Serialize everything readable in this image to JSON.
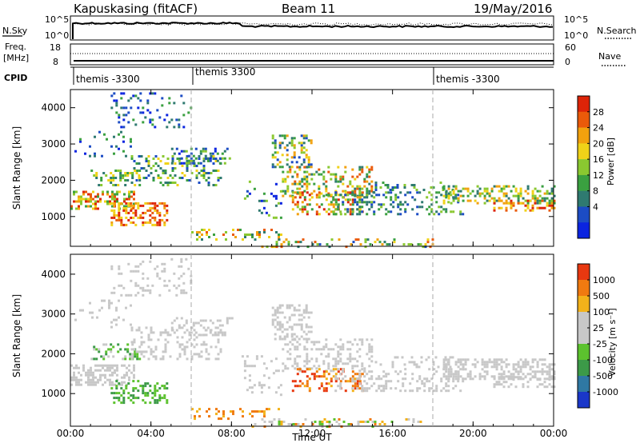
{
  "header": {
    "station": "Kapuskasing (fitACF)",
    "beam": "Beam 11",
    "date": "19/May/2016"
  },
  "noise_panel": {
    "left_label": "N.Sky",
    "right_label": "N.Search",
    "left_ticks": [
      "10^5",
      "10^0"
    ],
    "right_ticks": [
      "10^5",
      "10^0"
    ]
  },
  "freq_panel": {
    "left_label_1": "Freq.",
    "left_label_2": "[MHz]",
    "right_label": "Nave",
    "left_ticks": [
      "18",
      "8"
    ],
    "right_ticks": [
      "60",
      "0"
    ]
  },
  "cpid": {
    "label": "CPID",
    "segments": [
      {
        "start_hour": 0,
        "name": "themis -3300"
      },
      {
        "start_hour": 6,
        "name": "themis 3300"
      },
      {
        "start_hour": 18,
        "name": "themis -3300"
      }
    ]
  },
  "chart_data": [
    {
      "type": "heatmap",
      "quantity": "power",
      "ylabel": "Slant Range [km]",
      "ylim": [
        180,
        4500
      ],
      "yticks": [
        "1000",
        "2000",
        "3000",
        "4000"
      ],
      "colorbar_label": "Power [dB]",
      "colorbar_ticks": [
        "28",
        "24",
        "20",
        "16",
        "12",
        "8",
        "4"
      ],
      "colors": [
        "#0b24e0",
        "#1c4cc4",
        "#2f7a70",
        "#3aa040",
        "#8ac830",
        "#f0d218",
        "#f2a10e",
        "#ea5a0a",
        "#dd2408"
      ]
    },
    {
      "type": "heatmap",
      "quantity": "velocity",
      "ylabel": "Slant Range [km]",
      "ylim": [
        180,
        4500
      ],
      "yticks": [
        "1000",
        "2000",
        "3000",
        "4000"
      ],
      "colorbar_label": "Velocity [m s⁻¹]",
      "colorbar_ticks": [
        "1000",
        "500",
        "100",
        "25",
        "-25",
        "-100",
        "-500",
        "-1000"
      ],
      "colors": [
        "#1a37c9",
        "#2f78a3",
        "#3c9a48",
        "#5cc22e",
        "#c8c8c8",
        "#c8c8c8",
        "#f3b21a",
        "#f07a10",
        "#e83810"
      ]
    }
  ],
  "xaxis": {
    "label": "Time UT",
    "ticks": [
      "00:00",
      "04:00",
      "08:00",
      "12:00",
      "16:00",
      "20:00",
      "00:00"
    ],
    "range_hours": [
      0,
      24
    ]
  }
}
